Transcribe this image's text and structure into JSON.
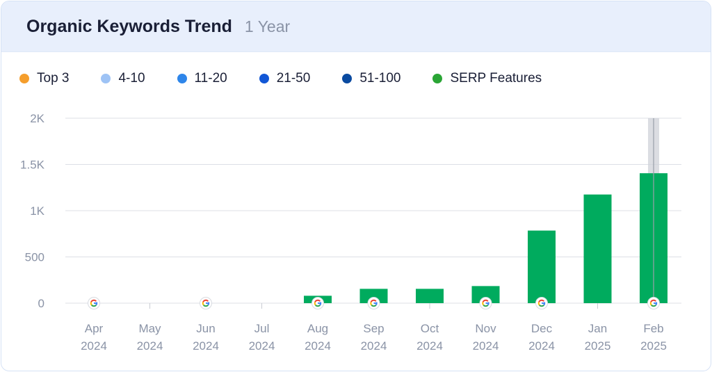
{
  "header": {
    "title": "Organic Keywords Trend",
    "period": "1 Year"
  },
  "legend": [
    {
      "label": "Top 3",
      "color": "#f59e2c"
    },
    {
      "label": "4-10",
      "color": "#9ec3f5"
    },
    {
      "label": "11-20",
      "color": "#2e86ea"
    },
    {
      "label": "21-50",
      "color": "#1257d6"
    },
    {
      "label": "51-100",
      "color": "#0a4aa0"
    },
    {
      "label": "SERP Features",
      "color": "#2aa535"
    }
  ],
  "chart_data": {
    "type": "bar",
    "categories": [
      [
        "Apr",
        "2024"
      ],
      [
        "May",
        "2024"
      ],
      [
        "Jun",
        "2024"
      ],
      [
        "Jul",
        "2024"
      ],
      [
        "Aug",
        "2024"
      ],
      [
        "Sep",
        "2024"
      ],
      [
        "Oct",
        "2024"
      ],
      [
        "Nov",
        "2024"
      ],
      [
        "Dec",
        "2024"
      ],
      [
        "Jan",
        "2025"
      ],
      [
        "Feb",
        "2025"
      ]
    ],
    "values": [
      0,
      0,
      0,
      0,
      80,
      155,
      155,
      185,
      785,
      1175,
      1405
    ],
    "bar_color": "#00ab5e",
    "ylim": [
      0,
      2000
    ],
    "yticks": [
      0,
      500,
      1000,
      1500,
      2000
    ],
    "ytick_labels": [
      "0",
      "500",
      "1K",
      "1.5K",
      "2K"
    ],
    "serp_feature_markers": [
      true,
      false,
      true,
      false,
      true,
      true,
      false,
      true,
      true,
      false,
      true
    ],
    "highlighted_category": "Feb",
    "grid": true
  }
}
